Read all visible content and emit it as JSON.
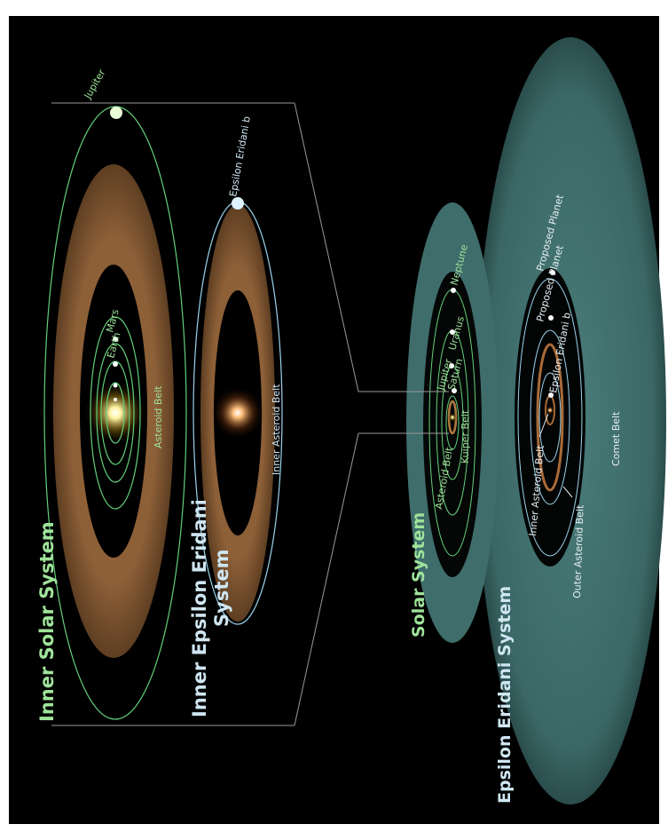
{
  "colors": {
    "background": "#000000",
    "solar_orbit": "#63d07a",
    "eridani_orbit": "#9ad4ec",
    "asteroid_dust": "#8a5e36",
    "comet_cloud": "#3f6e6c",
    "sun_glow": "#fff2a0",
    "eridani_glow": "#ffb070"
  },
  "inner_panel": {
    "solar_title": "Inner Solar System",
    "eridani_title_line1": "Inner Epsilon Eridani",
    "eridani_title_line2": "System",
    "planets": {
      "jupiter": "Jupiter",
      "earth": "Earth",
      "mars": "Mars",
      "eridani_b": "Epsilon Eridani b"
    },
    "belts": {
      "asteroid_belt": "Asteroid Belt",
      "inner_asteroid_belt": "Inner Asteroid Belt"
    }
  },
  "outer_panel": {
    "solar_title": "Solar System",
    "eridani_title": "Epsilon Eridani System",
    "planets": {
      "jupiter": "Jupiter",
      "saturn": "Saturn",
      "uranus": "Uranus",
      "neptune": "Neptune",
      "eridani_b": "Epsilon Eridani b",
      "proposed_1": "Proposed Planet",
      "proposed_2": "Proposed Planet"
    },
    "belts": {
      "asteroid_belt": "Asteroid Belt",
      "kuiper_belt": "Kuiper Belt",
      "inner_asteroid_belt": "Inner Asteroid Belt",
      "outer_asteroid_belt": "Outer Asteroid Belt",
      "comet_belt": "Comet Belt"
    }
  }
}
